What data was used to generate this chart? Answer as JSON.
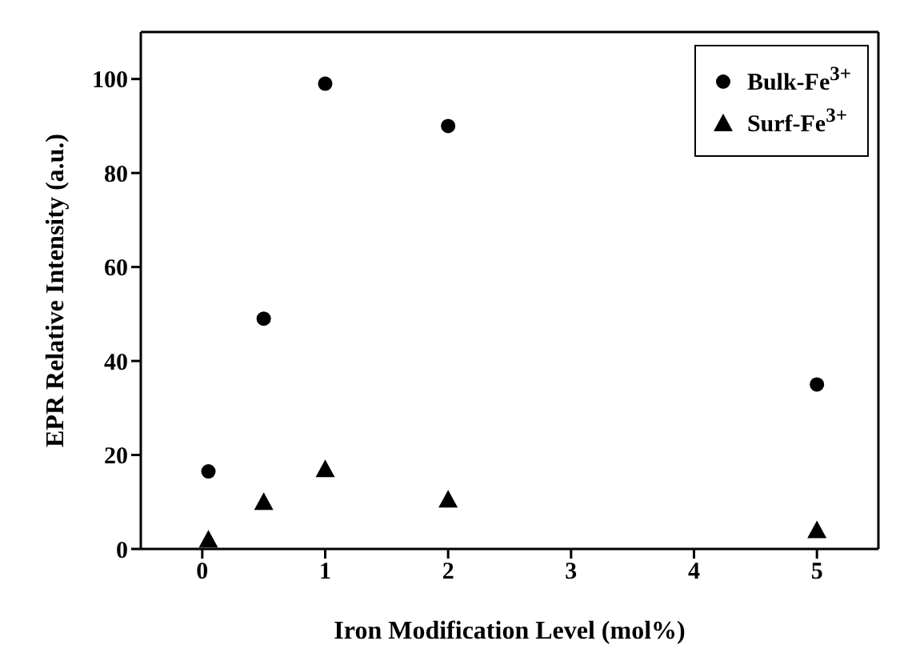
{
  "chart_data": {
    "type": "scatter",
    "xlabel": "Iron Modification Level (mol%)",
    "ylabel": "EPR Relative Intensity (a.u.)",
    "x": [
      0.05,
      0.5,
      1,
      2,
      5
    ],
    "series": [
      {
        "name": "Bulk-Fe$^{3+}$",
        "color": "#000000",
        "marker": "circle",
        "values": [
          16.5,
          49,
          99,
          90,
          35
        ]
      },
      {
        "name": "Surf-Fe$^{3+}$",
        "color": "#000000",
        "marker": "triangle",
        "values": [
          2,
          10,
          17,
          10.5,
          4
        ]
      }
    ],
    "xlim": [
      -0.5,
      5.5
    ],
    "xticks": [
      0,
      1,
      2,
      3,
      4,
      5
    ],
    "ylim": [
      0,
      110
    ],
    "yticks": [
      0,
      20,
      40,
      60,
      80,
      100
    ],
    "grid": false,
    "legend": "top right"
  }
}
